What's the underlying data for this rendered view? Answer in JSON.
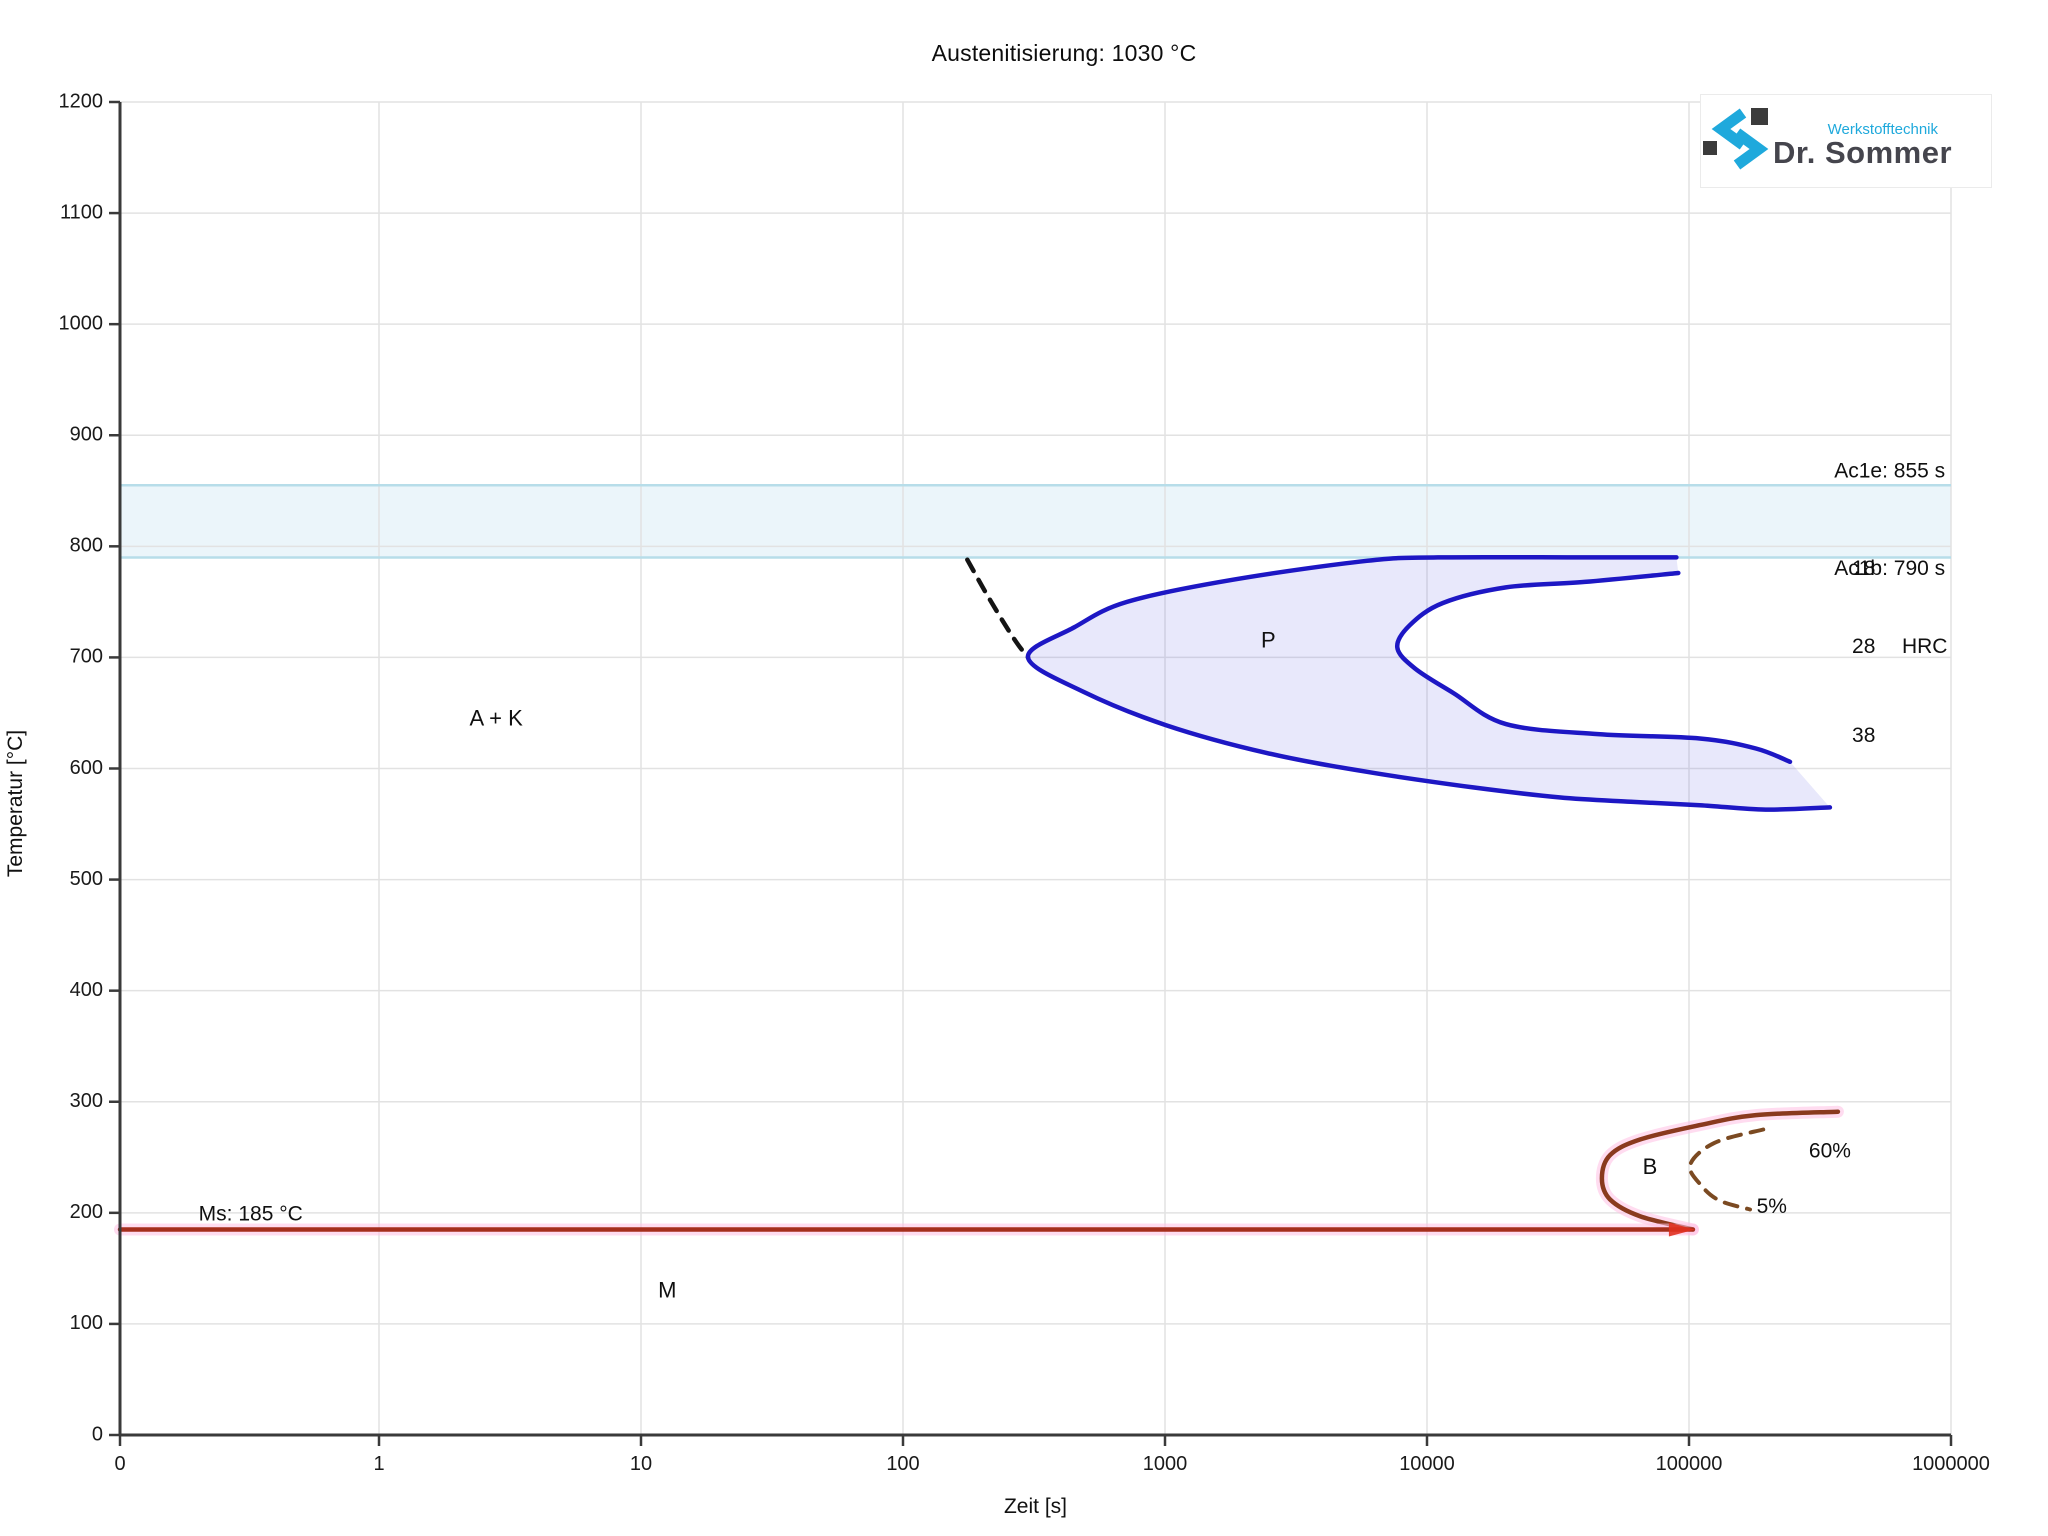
{
  "title": "Austenitisierung: 1030 °C",
  "logo": {
    "brand": "Dr. Sommer",
    "tagline": "Werkstofftechnik",
    "accent": "#1fa9dc",
    "dark": "#3b3b3b",
    "text_color": "#45454d"
  },
  "chart_data": {
    "type": "line",
    "title": "Austenitisierung: 1030 °C",
    "xlabel": "Zeit [s]",
    "ylabel": "Temperatur [°C]",
    "x_scale": "log-decades-with-zero",
    "x_ticks": [
      0,
      1,
      10,
      100,
      1000,
      10000,
      100000,
      1000000
    ],
    "y_range": [
      0,
      1200
    ],
    "y_tick_step": 100,
    "grid": true,
    "band": {
      "name": "ac1-band",
      "T_top": 855,
      "T_bottom": 790,
      "fill": "#e9f4fa",
      "edge": "#b7dde9",
      "label_top": "Ac1e: 855 s",
      "label_bottom": "Ac1b: 790 s"
    },
    "colors": {
      "pearlite": "#1d17c4",
      "pearlite_fill": "rgba(110,110,228,0.16)",
      "bainite": "#8a3a1e",
      "ms_line": "#a52e1c",
      "glow": "#ffbfe3",
      "dashed_boundary": "#141414",
      "bainite_dashed": "#7b4a22",
      "junction_marker": "#e03020"
    },
    "series": [
      {
        "name": "austenite-boundary-dashed",
        "style": "dashed",
        "color": "#141414",
        "width": 4.5,
        "points": [
          [
            176,
            788
          ],
          [
            205,
            760
          ],
          [
            240,
            733
          ],
          [
            272,
            713
          ],
          [
            300,
            700
          ]
        ]
      },
      {
        "name": "pearlite-start",
        "style": "solid",
        "color": "#1d17c4",
        "width": 4.5,
        "points": [
          [
            89500,
            790
          ],
          [
            40000,
            790
          ],
          [
            11000,
            790
          ],
          [
            5900,
            787
          ],
          [
            1820,
            770
          ],
          [
            716,
            750
          ],
          [
            450,
            727
          ],
          [
            300,
            700
          ],
          [
            489,
            669
          ],
          [
            1010,
            639
          ],
          [
            2440,
            614
          ],
          [
            5900,
            597
          ],
          [
            15000,
            583
          ],
          [
            32000,
            574
          ],
          [
            60000,
            570
          ],
          [
            110000,
            567
          ],
          [
            196000,
            563
          ],
          [
            345000,
            565
          ]
        ]
      },
      {
        "name": "pearlite-end",
        "style": "solid",
        "color": "#1d17c4",
        "width": 4.5,
        "points": [
          [
            91000,
            776
          ],
          [
            40000,
            768
          ],
          [
            20000,
            763
          ],
          [
            11500,
            749
          ],
          [
            8600,
            729
          ],
          [
            7700,
            709
          ],
          [
            9000,
            690
          ],
          [
            12600,
            668
          ],
          [
            20000,
            640
          ],
          [
            45000,
            631
          ],
          [
            110000,
            627
          ],
          [
            180000,
            618
          ],
          [
            243000,
            606
          ]
        ]
      },
      {
        "name": "bainite-start",
        "style": "solid",
        "color": "#8a3a1e",
        "width": 4.5,
        "glow": true,
        "points": [
          [
            370000,
            291
          ],
          [
            180000,
            288
          ],
          [
            110000,
            279
          ],
          [
            65000,
            266
          ],
          [
            50000,
            252
          ],
          [
            46500,
            231
          ],
          [
            50000,
            212
          ],
          [
            65000,
            197
          ],
          [
            103500,
            185
          ]
        ]
      },
      {
        "name": "ms-line",
        "style": "solid",
        "color": "#a52e1c",
        "width": 4.5,
        "glow": true,
        "points": [
          [
            0,
            185
          ],
          [
            103500,
            185
          ]
        ]
      },
      {
        "name": "bainite-percent-dashed",
        "style": "dashed",
        "color": "#7b4a22",
        "width": 4,
        "points": [
          [
            192000,
            275
          ],
          [
            125000,
            263
          ],
          [
            101000,
            243
          ],
          [
            112000,
            224
          ],
          [
            131000,
            211
          ],
          [
            171000,
            203
          ]
        ]
      }
    ],
    "fill_region": {
      "name": "pearlite-fill",
      "between": [
        "pearlite-start",
        "pearlite-end"
      ],
      "color": "rgba(110,110,228,0.16)"
    },
    "junction": {
      "t": 103500,
      "T": 185
    },
    "annotations": [
      {
        "text": "Ac1e: 855 s",
        "t": 950000,
        "T": 867,
        "anchor": "end",
        "size": 21
      },
      {
        "text": "Ac1b: 790 s",
        "t": 950000,
        "T": 779,
        "anchor": "end",
        "size": 21
      },
      {
        "text": "18",
        "t": 419000,
        "T": 779,
        "anchor": "start",
        "size": 21
      },
      {
        "text": "28",
        "t": 419000,
        "T": 709,
        "anchor": "start",
        "size": 21
      },
      {
        "text": "HRC",
        "t": 650000,
        "T": 709,
        "anchor": "start",
        "size": 21
      },
      {
        "text": "38",
        "t": 419000,
        "T": 629,
        "anchor": "start",
        "size": 21
      },
      {
        "text": "P",
        "t": 2480,
        "T": 714,
        "anchor": "middle",
        "size": 22
      },
      {
        "text": "A + K",
        "t": 2.8,
        "T": 644,
        "anchor": "middle",
        "size": 22
      },
      {
        "text": "M",
        "t": 12.6,
        "T": 129,
        "anchor": "middle",
        "size": 22
      },
      {
        "text": "B",
        "t": 71000,
        "T": 240,
        "anchor": "middle",
        "size": 22
      },
      {
        "text": "60%",
        "t": 345000,
        "T": 255,
        "anchor": "middle",
        "size": 21
      },
      {
        "text": "5%",
        "t": 207000,
        "T": 205,
        "anchor": "middle",
        "size": 21
      },
      {
        "text": "Ms: 185 °C",
        "t": 0.205,
        "T": 198,
        "anchor": "start",
        "size": 21
      }
    ]
  }
}
